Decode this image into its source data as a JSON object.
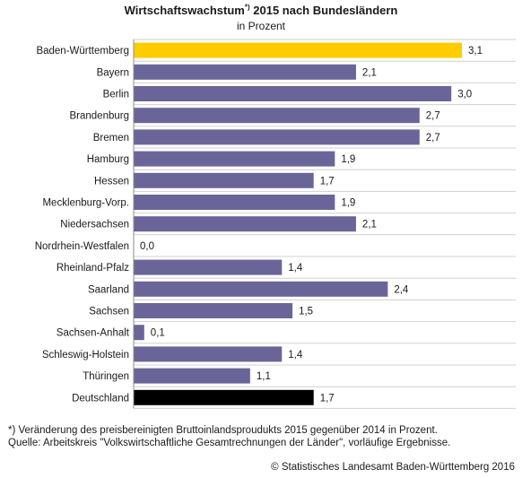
{
  "chart_data": {
    "type": "bar",
    "orientation": "horizontal",
    "title": "Wirtschaftswachstum",
    "title_footnote_mark": "*)",
    "title_rest": " 2015 nach Bundesländern",
    "subtitle": "in Prozent",
    "categories": [
      "Baden-Württemberg",
      "Bayern",
      "Berlin",
      "Brandenburg",
      "Bremen",
      "Hamburg",
      "Hessen",
      "Mecklenburg-Vorp.",
      "Niedersachsen",
      "Nordrhein-Westfalen",
      "Rheinland-Pfalz",
      "Saarland",
      "Sachsen",
      "Sachsen-Anhalt",
      "Schleswig-Holstein",
      "Thüringen",
      "Deutschland"
    ],
    "values": [
      3.1,
      2.1,
      3.0,
      2.7,
      2.7,
      1.9,
      1.7,
      1.9,
      2.1,
      0.0,
      1.4,
      2.4,
      1.5,
      0.1,
      1.4,
      1.1,
      1.7
    ],
    "value_labels": [
      "3,1",
      "2,1",
      "3,0",
      "2,7",
      "2,7",
      "1,9",
      "1,7",
      "1,9",
      "2,1",
      "0,0",
      "1,4",
      "2,4",
      "1,5",
      "0,1",
      "1,4",
      "1,1",
      "1,7"
    ],
    "xlim": [
      0,
      3.1
    ],
    "colors": {
      "default": "#6a6599",
      "highlight": "#ffcc00",
      "total": "#000000",
      "axis": "#8c8c8c",
      "grid": "#d0d0d0"
    },
    "bar_color_roles": [
      "highlight",
      "default",
      "default",
      "default",
      "default",
      "default",
      "default",
      "default",
      "default",
      "default",
      "default",
      "default",
      "default",
      "default",
      "default",
      "default",
      "total"
    ],
    "grid": true,
    "legend": "none"
  },
  "footnote": {
    "line1": "*) Veränderung des preisbereinigten Bruttoinlandsproudukts 2015 gegenüber 2014 in Prozent.",
    "line2": "Quelle: Arbeitskreis \"Volkswirtschaftliche Gesamtrechnungen der Länder\", vorläufige Ergebnisse."
  },
  "copyright": "© Statistisches Landesamt Baden-Württemberg 2016"
}
